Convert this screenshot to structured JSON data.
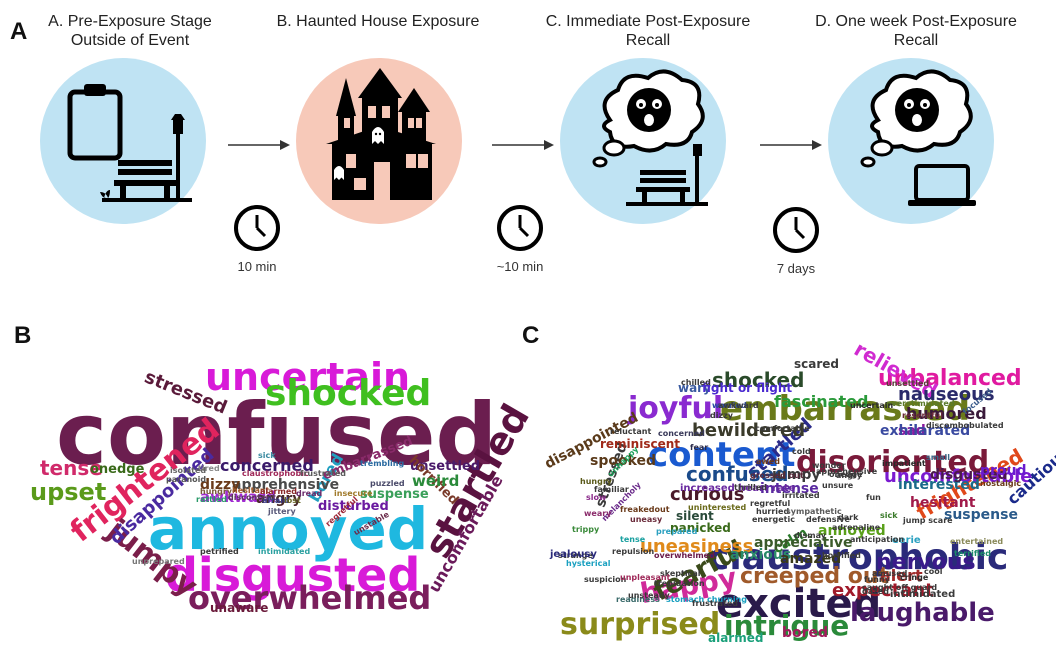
{
  "panel_labels": {
    "a": "A",
    "b": "B",
    "c": "C"
  },
  "stages": [
    {
      "title_line1": "A. Pre-Exposure Stage",
      "title_line2": "Outside of Event",
      "color": "#bfe3f3"
    },
    {
      "title_line1": "B. Haunted House Exposure",
      "title_line2": "",
      "color": "#f7c9b9"
    },
    {
      "title_line1": "C. Immediate Post-Exposure",
      "title_line2": "Recall",
      "color": "#bfe3f3"
    },
    {
      "title_line1": "D. One week Post-Exposure",
      "title_line2": "Recall",
      "color": "#bfe3f3"
    }
  ],
  "intervals": [
    "10 min",
    "~10 min",
    "7 days"
  ],
  "icons": [
    "clipboard-icon",
    "park-bench-icon",
    "street-lamp-icon",
    "haunted-house-icon",
    "ghost-icon",
    "thought-cloud-icon",
    "shocked-face-icon",
    "laptop-icon",
    "clock-icon"
  ],
  "wordcloud_b": [
    {
      "t": "confused",
      "c": "#6b1e4f"
    },
    {
      "t": "annoyed",
      "c": "#1fb8e0"
    },
    {
      "t": "disgusted",
      "c": "#d81ad8"
    },
    {
      "t": "uncertain",
      "c": "#d81ad8"
    },
    {
      "t": "shocked",
      "c": "#3fbf1f"
    },
    {
      "t": "overwhelmed",
      "c": "#7a1e5c"
    },
    {
      "t": "startled",
      "c": "#5a1240"
    },
    {
      "t": "frightened",
      "c": "#e0245e"
    },
    {
      "t": "jumpy",
      "c": "#7a1e4a"
    },
    {
      "t": "upset",
      "c": "#5a9a1a"
    },
    {
      "t": "tense",
      "c": "#d02a6a"
    },
    {
      "t": "stressed",
      "c": "#5a1a3a"
    },
    {
      "t": "disappointed",
      "c": "#4a2aa0"
    },
    {
      "t": "concerned",
      "c": "#3a1a6a"
    },
    {
      "t": "uncomfortable",
      "c": "#6a1a5a"
    },
    {
      "t": "bored",
      "c": "#22a0c0"
    },
    {
      "t": "awkward",
      "c": "#a02ad0"
    },
    {
      "t": "apprehensive",
      "c": "#4a4a4a"
    },
    {
      "t": "dizzy",
      "c": "#6a3a1a"
    },
    {
      "t": "angry",
      "c": "#4a2a2a"
    },
    {
      "t": "embarrassed",
      "c": "#8a2a6a"
    },
    {
      "t": "unsettled",
      "c": "#4a1a6a"
    },
    {
      "t": "horrified",
      "c": "#7a3a2a"
    },
    {
      "t": "weird",
      "c": "#2a8a3a"
    },
    {
      "t": "disturbed",
      "c": "#6a1aa0"
    },
    {
      "t": "suspense",
      "c": "#3aa05a"
    },
    {
      "t": "onedge",
      "c": "#3a6a1a"
    },
    {
      "t": "unaware",
      "c": "#6a1a3a"
    },
    {
      "t": "tired",
      "c": "#888888"
    },
    {
      "t": "sick",
      "c": "#3a8aa0"
    },
    {
      "t": "hesitant",
      "c": "#a05a2a"
    },
    {
      "t": "claustrophobic",
      "c": "#a02a5a"
    },
    {
      "t": "frustrated",
      "c": "#5a5a5a"
    },
    {
      "t": "trembling",
      "c": "#2a6aa0"
    },
    {
      "t": "isolated",
      "c": "#666666"
    },
    {
      "t": "paranoid",
      "c": "#555555"
    },
    {
      "t": "hungry",
      "c": "#7a5a3a"
    },
    {
      "t": "discontent",
      "c": "#5a3a5a"
    },
    {
      "t": "alarmed",
      "c": "#8a2a2a"
    },
    {
      "t": "afraid",
      "c": "#3a3a8a"
    },
    {
      "t": "lost",
      "c": "#6a6a2a"
    },
    {
      "t": "dread",
      "c": "#6a2a6a"
    },
    {
      "t": "puzzled",
      "c": "#4a4a6a"
    },
    {
      "t": "insecure",
      "c": "#a07a2a"
    },
    {
      "t": "regretful",
      "c": "#a02a3a"
    },
    {
      "t": "unstable",
      "c": "#6a2a4a"
    },
    {
      "t": "petrified",
      "c": "#3a3a3a"
    },
    {
      "t": "intimidated",
      "c": "#2aa0a0"
    },
    {
      "t": "unprepared",
      "c": "#777777"
    },
    {
      "t": "rattled",
      "c": "#2a9a6a"
    },
    {
      "t": "jittery",
      "c": "#5a5a7a"
    }
  ],
  "wordcloud_c": [
    {
      "t": "excited",
      "c": "#2a1a4a"
    },
    {
      "t": "claustrophobic",
      "c": "#2a2a7a"
    },
    {
      "t": "content",
      "c": "#1a5ad0"
    },
    {
      "t": "embarrassed",
      "c": "#6a7a1a"
    },
    {
      "t": "surprised",
      "c": "#8a8a1a"
    },
    {
      "t": "disoriented",
      "c": "#7a1a3a"
    },
    {
      "t": "joyful",
      "c": "#8a2ad0"
    },
    {
      "t": "happy",
      "c": "#d02a9a"
    },
    {
      "t": "intrigue",
      "c": "#2a8a3a"
    },
    {
      "t": "laughable",
      "c": "#4a1a6a"
    },
    {
      "t": "fearful",
      "c": "#3a4a1a"
    },
    {
      "t": "creeped out",
      "c": "#a05a2a"
    },
    {
      "t": "nervous",
      "c": "#3a1a8a"
    },
    {
      "t": "frightened",
      "c": "#e0481a"
    },
    {
      "t": "unbalanced",
      "c": "#e01aa0"
    },
    {
      "t": "shocked",
      "c": "#2a4a2a"
    },
    {
      "t": "relieved",
      "c": "#d02ad0"
    },
    {
      "t": "nauseous",
      "c": "#2a2a6a"
    },
    {
      "t": "startled",
      "c": "#2a2a8a"
    },
    {
      "t": "bewildered",
      "c": "#3a3a2a"
    },
    {
      "t": "disappointed",
      "c": "#5a3a1a"
    },
    {
      "t": "uncomfortable",
      "c": "#7a1ad0"
    },
    {
      "t": "confused",
      "c": "#1a4a8a"
    },
    {
      "t": "curious",
      "c": "#4a1a2a"
    },
    {
      "t": "cautious",
      "c": "#1a2a8a"
    },
    {
      "t": "uneasiness",
      "c": "#e08a1a"
    },
    {
      "t": "expectant",
      "c": "#a01a2a"
    },
    {
      "t": "fascinated",
      "c": "#2a9a3a"
    },
    {
      "t": "humored",
      "c": "#3a1a3a"
    },
    {
      "t": "sad",
      "c": "#8a1aa0"
    },
    {
      "t": "interested",
      "c": "#1a6a8a"
    },
    {
      "t": "exhilarated",
      "c": "#3a4aa0"
    },
    {
      "t": "hesitant",
      "c": "#a01a4a"
    },
    {
      "t": "disgusted",
      "c": "#4a1a4a"
    },
    {
      "t": "proud",
      "c": "#6a1ad0"
    },
    {
      "t": "suspense",
      "c": "#2a5a8a"
    },
    {
      "t": "jumpy",
      "c": "#3a3a3a"
    },
    {
      "t": "intense",
      "c": "#5a2aa0"
    },
    {
      "t": "anxious",
      "c": "#2a8a6a"
    },
    {
      "t": "amazed",
      "c": "#3a3a1a"
    },
    {
      "t": "calm",
      "c": "#2a7a2a"
    },
    {
      "t": "appreciative",
      "c": "#3a5a2a"
    },
    {
      "t": "annoyed",
      "c": "#5aa01a"
    },
    {
      "t": "alert",
      "c": "#a02a2a"
    },
    {
      "t": "bored",
      "c": "#a01a5a"
    },
    {
      "t": "alarmed",
      "c": "#1aa07a"
    },
    {
      "t": "stressed",
      "c": "#3a3a3a"
    },
    {
      "t": "reminiscent",
      "c": "#a02a1a"
    },
    {
      "t": "spooked",
      "c": "#5a3a1a"
    },
    {
      "t": "wary",
      "c": "#3a5aa0"
    },
    {
      "t": "fight or flight",
      "c": "#4a2ad0"
    },
    {
      "t": "scared",
      "c": "#3a3a3a"
    },
    {
      "t": "panicked",
      "c": "#3a6a1a"
    },
    {
      "t": "silent",
      "c": "#2a4a3a"
    },
    {
      "t": "increased heart rate",
      "c": "#6a2aa0"
    },
    {
      "t": "worried",
      "c": "#2a4aa0"
    },
    {
      "t": "dizzy",
      "c": "#3a3a3a"
    },
    {
      "t": "concerned",
      "c": "#3a3a5a"
    },
    {
      "t": "fear",
      "c": "#2a2a4a"
    },
    {
      "t": "awed",
      "c": "#6a3a1a"
    },
    {
      "t": "grossed out",
      "c": "#5a2a3a"
    },
    {
      "t": "wonder",
      "c": "#3a3a3a"
    },
    {
      "t": "impatient",
      "c": "#2a2a2a"
    },
    {
      "t": "small",
      "c": "#3a6a8a"
    },
    {
      "t": "sick",
      "c": "#3a7a2a"
    },
    {
      "t": "eerie",
      "c": "#2aa0c0"
    },
    {
      "t": "cool",
      "c": "#3a3a3a"
    },
    {
      "t": "cringe",
      "c": "#2a2a2a"
    },
    {
      "t": "entertained",
      "c": "#8a8a5a"
    },
    {
      "t": "intimidated",
      "c": "#3a3a3a"
    },
    {
      "t": "nostalgic",
      "c": "#6a3a1a"
    },
    {
      "t": "terrified",
      "c": "#1a8a6a"
    },
    {
      "t": "focused",
      "c": "#3a5a8a"
    },
    {
      "t": "discombobulated",
      "c": "#3a3a3a"
    },
    {
      "t": "resentful",
      "c": "#6a2a3a"
    },
    {
      "t": "overstimulated",
      "c": "#5a7a2a"
    },
    {
      "t": "uncertain",
      "c": "#2a2a2a"
    },
    {
      "t": "unsettled",
      "c": "#5a3a3a"
    },
    {
      "t": "reluctant",
      "c": "#3a3a3a"
    },
    {
      "t": "unhappy",
      "c": "#1aa05a"
    },
    {
      "t": "melancholy",
      "c": "#6a2a8a"
    },
    {
      "t": "hungry",
      "c": "#5a5a1a"
    },
    {
      "t": "familiar",
      "c": "#3a3a3a"
    },
    {
      "t": "slow",
      "c": "#8a2a8a"
    },
    {
      "t": "weary",
      "c": "#8a2a6a"
    },
    {
      "t": "trippy",
      "c": "#3a8a3a"
    },
    {
      "t": "strange",
      "c": "#3a3a3a"
    },
    {
      "t": "hysterical",
      "c": "#1aa0c0"
    },
    {
      "t": "jealousy",
      "c": "#2a2a7a"
    },
    {
      "t": "suspicion",
      "c": "#3a3a3a"
    },
    {
      "t": "repulsion",
      "c": "#3a3a3a"
    },
    {
      "t": "overwhelmed",
      "c": "#6a1a4a"
    },
    {
      "t": "skeptical",
      "c": "#3a3a3a"
    },
    {
      "t": "readiness",
      "c": "#3a6a6a"
    },
    {
      "t": "unpleasant",
      "c": "#a02a5a"
    },
    {
      "t": "trepidation",
      "c": "#3a3a3a"
    },
    {
      "t": "stomach churning",
      "c": "#1aa0c0"
    },
    {
      "t": "unsteady",
      "c": "#3a3a3a"
    },
    {
      "t": "frustrated",
      "c": "#3a3a3a"
    },
    {
      "t": "freakedout",
      "c": "#6a3a1a"
    },
    {
      "t": "uneasy",
      "c": "#6a2a3a"
    },
    {
      "t": "uninterested",
      "c": "#6a6a1a"
    },
    {
      "t": "tense",
      "c": "#1aa0a0"
    },
    {
      "t": "prepared",
      "c": "#2aa0c0"
    },
    {
      "t": "thrilled",
      "c": "#3a3a3a"
    },
    {
      "t": "regretful",
      "c": "#3a3a3a"
    },
    {
      "t": "hurried",
      "c": "#3a3a3a"
    },
    {
      "t": "energetic",
      "c": "#3a3a3a"
    },
    {
      "t": "defensive",
      "c": "#3a3a3a"
    },
    {
      "t": "sympathetic",
      "c": "#5a5a5a"
    },
    {
      "t": "dismay",
      "c": "#3a3a3a"
    },
    {
      "t": "irritated",
      "c": "#3a3a3a"
    },
    {
      "t": "apprehensive",
      "c": "#3a3a3a"
    },
    {
      "t": "unsure",
      "c": "#3a3a3a"
    },
    {
      "t": "angry",
      "c": "#3a3a3a"
    },
    {
      "t": "adrenaline",
      "c": "#3a3a3a"
    },
    {
      "t": "horrified",
      "c": "#3a3a3a"
    },
    {
      "t": "anticipation",
      "c": "#3a3a3a"
    },
    {
      "t": "amused",
      "c": "#3a3a3a"
    },
    {
      "t": "funny",
      "c": "#3a3a3a"
    },
    {
      "t": "dark",
      "c": "#3a3a3a"
    },
    {
      "t": "dazed",
      "c": "#3a3a3a"
    },
    {
      "t": "caught off guard",
      "c": "#3a3a3a"
    },
    {
      "t": "chilled",
      "c": "#3a3a3a"
    },
    {
      "t": "awkward",
      "c": "#3a3a3a"
    },
    {
      "t": "comfortable",
      "c": "#3a3a3a"
    },
    {
      "t": "cold",
      "c": "#3a3a3a"
    },
    {
      "t": "onedge",
      "c": "#3a3a3a"
    },
    {
      "t": "fun",
      "c": "#3a3a3a"
    },
    {
      "t": "jump scare",
      "c": "#3a3a3a"
    }
  ]
}
